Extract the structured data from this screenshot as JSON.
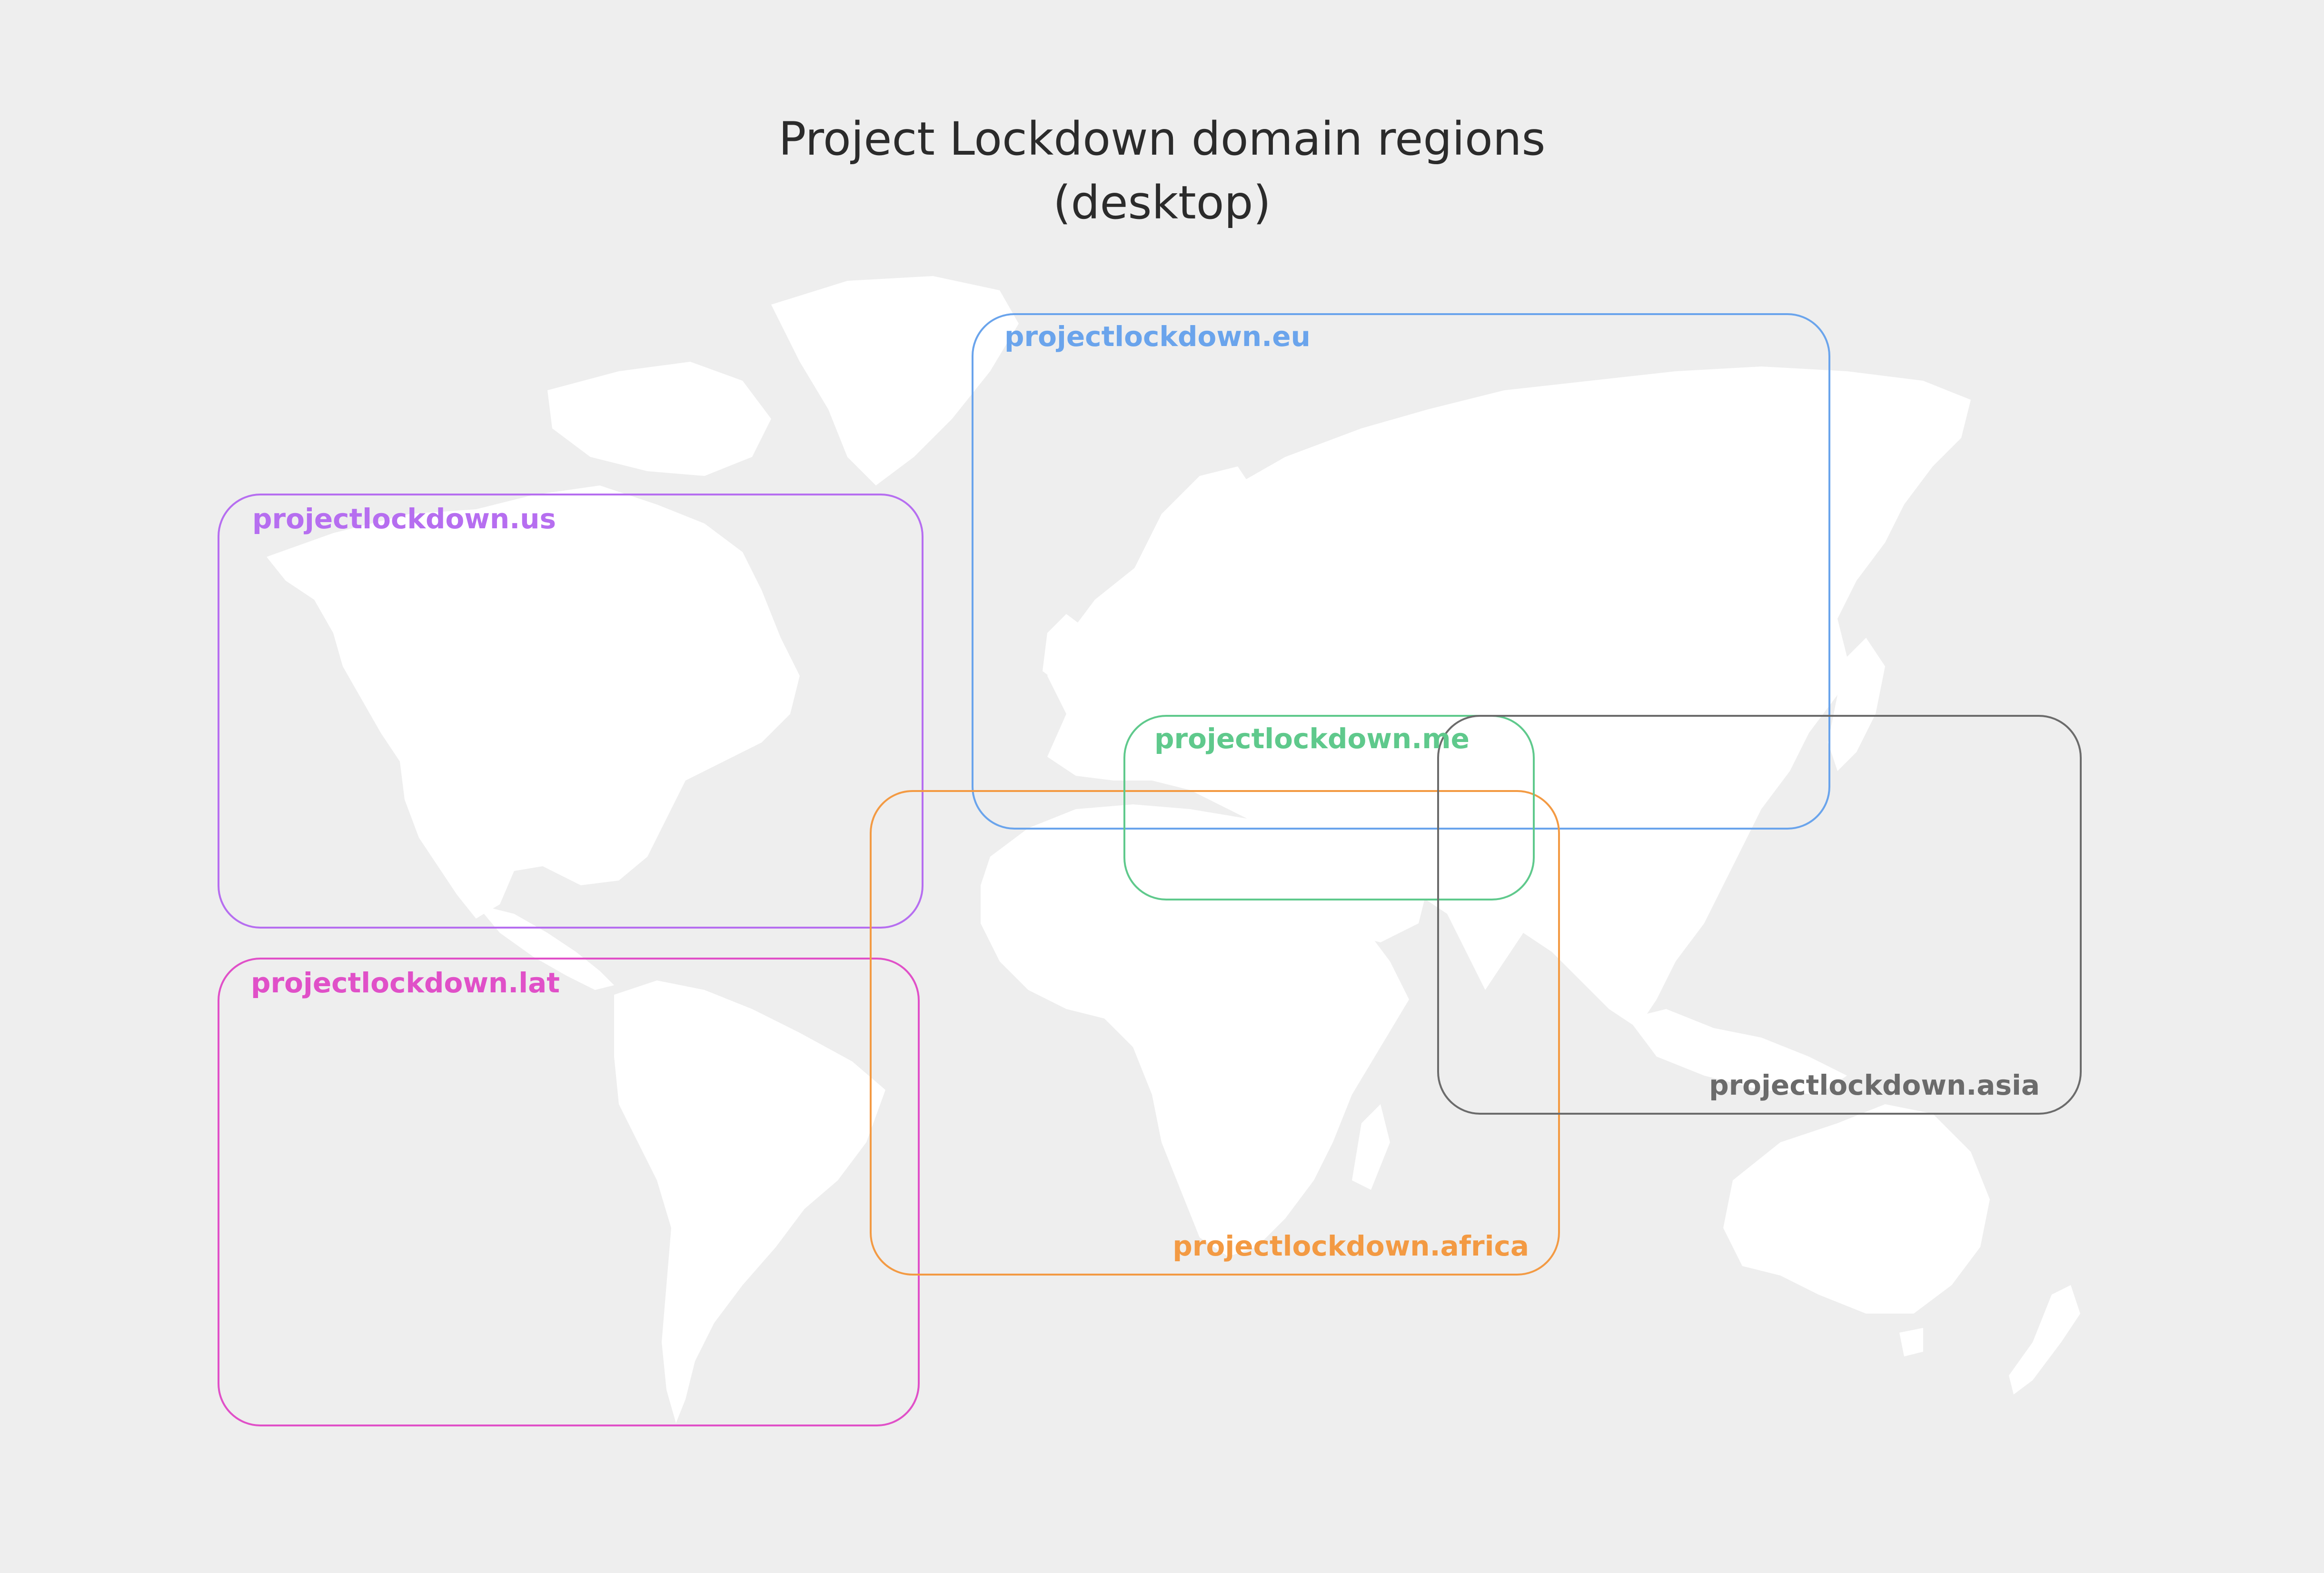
{
  "title": {
    "line1": "Project Lockdown domain regions",
    "line2": "(desktop)"
  },
  "map": {
    "background_color": "#eeeeee",
    "land_color": "#ffffff",
    "projection": "world map"
  },
  "regions": [
    {
      "id": "eu",
      "label": "projectlockdown.eu",
      "color": "#6aa4ec"
    },
    {
      "id": "us",
      "label": "projectlockdown.us",
      "color": "#b66ef0"
    },
    {
      "id": "lat",
      "label": "projectlockdown.lat",
      "color": "#e050c8"
    },
    {
      "id": "africa",
      "label": "projectlockdown.africa",
      "color": "#f39a43"
    },
    {
      "id": "me",
      "label": "projectlockdown.me",
      "color": "#5fc98c"
    },
    {
      "id": "asia",
      "label": "projectlockdown.asia",
      "color": "#6b6b6b"
    }
  ]
}
